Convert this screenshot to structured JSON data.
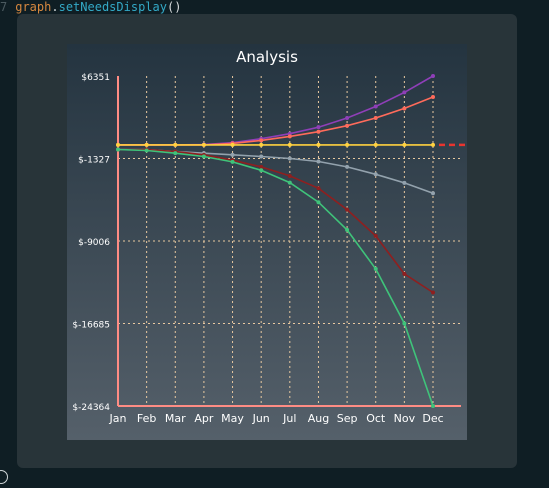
{
  "code": {
    "line_number": "7",
    "object": "graph",
    "dot": ".",
    "method": "setNeedsDisplay",
    "parens": "()"
  },
  "chart_data": {
    "type": "line",
    "title": "Analysis",
    "xlabel": "",
    "ylabel": "",
    "categories": [
      "Jan",
      "Feb",
      "Mar",
      "Apr",
      "May",
      "Jun",
      "Jul",
      "Aug",
      "Sep",
      "Oct",
      "Nov",
      "Dec"
    ],
    "ytick_labels": [
      "$6351",
      "$-1327",
      "$-9006",
      "$-16685",
      "$-24364"
    ],
    "ylim": [
      -24364,
      6351
    ],
    "grid": true,
    "legend": "none",
    "series": [
      {
        "color": "#8f3fb8",
        "values": [
          -58,
          -58,
          -58,
          -27,
          140,
          513,
          978,
          1588,
          2443,
          3512,
          4825,
          6351
        ]
      },
      {
        "color": "#ff6b5b",
        "values": [
          -58,
          -58,
          -58,
          -58,
          78,
          357,
          730,
          1164,
          1726,
          2443,
          3331,
          4398
        ]
      },
      {
        "color": "#ffd23f",
        "values": [
          -58,
          -58,
          -58,
          -58,
          -58,
          -58,
          -58,
          -58,
          -58,
          -58,
          -58,
          -58
        ]
      },
      {
        "color": "#93a2ad",
        "values": [
          -492,
          -492,
          -678,
          -833,
          -988,
          -1143,
          -1330,
          -1609,
          -2113,
          -2796,
          -3602,
          -4564
        ]
      },
      {
        "color": "#8f1f1f",
        "values": [
          -492,
          -492,
          -678,
          -988,
          -1485,
          -2113,
          -2951,
          -4098,
          -6086,
          -8533,
          -12069,
          -13804
        ]
      },
      {
        "color": "#3fc37a",
        "values": [
          -492,
          -585,
          -833,
          -1143,
          -1640,
          -2423,
          -3571,
          -5395,
          -7974,
          -11602,
          -16685,
          -24364
        ]
      }
    ],
    "reference_line": {
      "value": -58,
      "color": "#e8352f",
      "style": "dashed"
    }
  }
}
